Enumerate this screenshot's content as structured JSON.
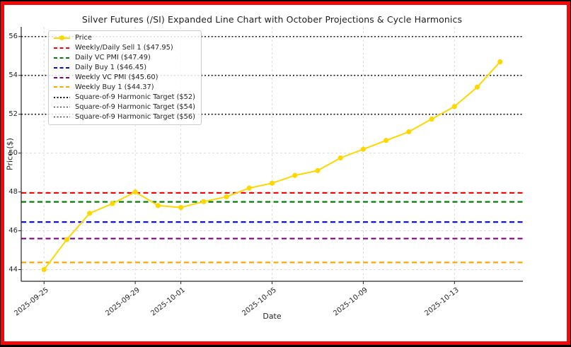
{
  "frame": {
    "border_color": "#f10808",
    "outer_color": "#000000",
    "figure_bg": "#ffffff"
  },
  "chart_data": {
    "type": "line",
    "title": "Silver Futures (/SI) Expanded Line Chart with October Projections & Cycle Harmonics",
    "xlabel": "Date",
    "ylabel": "Price ($)",
    "x": [
      "2025-09-25",
      "2025-09-26",
      "2025-09-27",
      "2025-09-28",
      "2025-09-29",
      "2025-09-30",
      "2025-10-01",
      "2025-10-02",
      "2025-10-03",
      "2025-10-04",
      "2025-10-05",
      "2025-10-06",
      "2025-10-07",
      "2025-10-08",
      "2025-10-09",
      "2025-10-10",
      "2025-10-11",
      "2025-10-12",
      "2025-10-13",
      "2025-10-14",
      "2025-10-15"
    ],
    "series": [
      {
        "name": "Price",
        "color": "#FFD700",
        "marker": "circle",
        "values": [
          44.0,
          45.55,
          46.9,
          47.4,
          48.0,
          47.3,
          47.2,
          47.5,
          47.75,
          48.2,
          48.45,
          48.85,
          49.1,
          49.75,
          50.2,
          50.65,
          51.1,
          51.75,
          52.4,
          53.4,
          54.7
        ]
      }
    ],
    "hlines": [
      {
        "label": "Weekly/Daily Sell 1 ($47.95)",
        "value": 47.95,
        "color": "#FF0000",
        "style": "dashed"
      },
      {
        "label": "Daily VC PMI ($47.49)",
        "value": 47.49,
        "color": "#008000",
        "style": "dashed"
      },
      {
        "label": "Daily Buy 1 ($46.45)",
        "value": 46.45,
        "color": "#0000FF",
        "style": "dashed"
      },
      {
        "label": "Weekly VC PMI ($45.60)",
        "value": 45.6,
        "color": "#800080",
        "style": "dashed"
      },
      {
        "label": "Weekly Buy 1 ($44.37)",
        "value": 44.37,
        "color": "#FFA500",
        "style": "dashed"
      },
      {
        "label": "Square-of-9 Harmonic Target ($52)",
        "value": 52,
        "color": "#000000",
        "style": "dotted"
      },
      {
        "label": "Square-of-9 Harmonic Target ($54)",
        "value": 54,
        "color": "#000000",
        "style": "dotted"
      },
      {
        "label": "Square-of-9 Harmonic Target ($56)",
        "value": 56,
        "color": "#000000",
        "style": "dotted"
      }
    ],
    "xticks": [
      "2025-09-25",
      "2025-09-29",
      "2025-10-01",
      "2025-10-05",
      "2025-10-09",
      "2025-10-13"
    ],
    "yticks": [
      44,
      46,
      48,
      50,
      52,
      54,
      56
    ],
    "ylim": [
      43.4,
      56.5
    ],
    "grid": true,
    "legend_position": "upper-left"
  },
  "legend": {
    "items": [
      {
        "label": "Price",
        "color": "#FFD700",
        "style": "line-marker"
      },
      {
        "label": "Weekly/Daily Sell 1 ($47.95)",
        "color": "#FF0000",
        "style": "dashed"
      },
      {
        "label": "Daily VC PMI ($47.49)",
        "color": "#008000",
        "style": "dashed"
      },
      {
        "label": "Daily Buy 1 ($46.45)",
        "color": "#0000FF",
        "style": "dashed"
      },
      {
        "label": "Weekly VC PMI ($45.60)",
        "color": "#800080",
        "style": "dashed"
      },
      {
        "label": "Weekly Buy 1 ($44.37)",
        "color": "#FFA500",
        "style": "dashed"
      },
      {
        "label": "Square-of-9 Harmonic Target ($52)",
        "color": "#000000",
        "style": "dotted"
      },
      {
        "label": "Square-of-9 Harmonic Target ($54)",
        "color": "#000000",
        "style": "dotted"
      },
      {
        "label": "Square-of-9 Harmonic Target ($56)",
        "color": "#000000",
        "style": "dotted"
      }
    ]
  }
}
